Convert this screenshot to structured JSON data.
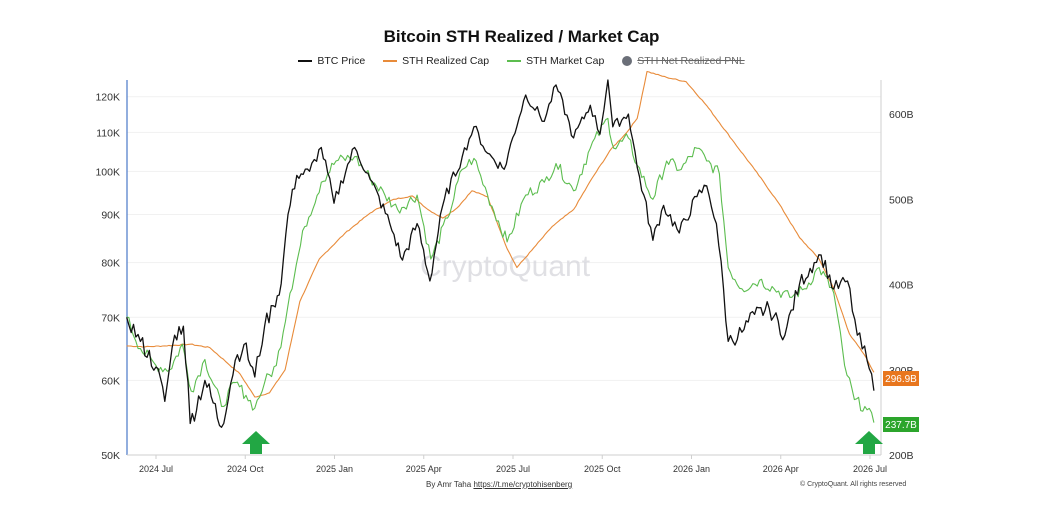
{
  "chart_data": {
    "type": "line",
    "title": "Bitcoin STH Realized / Market Cap",
    "watermark": "CryptoQuant",
    "x_ticks": [
      "2024 Jul",
      "2024 Oct",
      "2025 Jan",
      "2025 Apr",
      "2025 Jul",
      "2025 Oct",
      "2026 Jan",
      "2026 Apr",
      "2026 Jul"
    ],
    "y_left_ticks": [
      "50K",
      "60K",
      "70K",
      "80K",
      "90K",
      "100K",
      "110K",
      "120K"
    ],
    "y_left_scale": "log",
    "y_left_range": [
      50000,
      125000
    ],
    "y_right_ticks": [
      "200B",
      "300B",
      "400B",
      "500B",
      "600B"
    ],
    "y_right_range": [
      200,
      640
    ],
    "legend": [
      {
        "name": "BTC Price",
        "color": "#111111",
        "style": "line"
      },
      {
        "name": "STH Realized Cap",
        "color": "#e88b3a",
        "style": "line"
      },
      {
        "name": "STH Market Cap",
        "color": "#5cbd4f",
        "style": "line"
      },
      {
        "name": "STH Net Realized PNL",
        "color": "#6b6f78",
        "style": "dot",
        "disabled": true
      }
    ],
    "end_labels": [
      {
        "text": "296.9B",
        "color": "#e8761e"
      },
      {
        "text": "237.7B",
        "color": "#2ca52c"
      }
    ],
    "series": [
      {
        "name": "BTC Price",
        "axis": "left",
        "color": "#111111",
        "points": [
          [
            "2024-06-01",
            70000
          ],
          [
            "2024-06-15",
            66000
          ],
          [
            "2024-07-01",
            62000
          ],
          [
            "2024-07-10",
            57000
          ],
          [
            "2024-07-20",
            67000
          ],
          [
            "2024-07-29",
            68500
          ],
          [
            "2024-08-05",
            54000
          ],
          [
            "2024-08-20",
            60000
          ],
          [
            "2024-09-06",
            53500
          ],
          [
            "2024-09-20",
            63000
          ],
          [
            "2024-09-29",
            65500
          ],
          [
            "2024-10-10",
            60500
          ],
          [
            "2024-10-20",
            68500
          ],
          [
            "2024-10-29",
            72000
          ],
          [
            "2024-11-06",
            76000
          ],
          [
            "2024-11-13",
            90000
          ],
          [
            "2024-11-22",
            99000
          ],
          [
            "2024-12-05",
            100000
          ],
          [
            "2024-12-17",
            106000
          ],
          [
            "2024-12-30",
            92500
          ],
          [
            "2025-01-20",
            106000
          ],
          [
            "2025-02-05",
            98000
          ],
          [
            "2025-02-25",
            88000
          ],
          [
            "2025-03-10",
            80500
          ],
          [
            "2025-03-25",
            88000
          ],
          [
            "2025-04-07",
            76500
          ],
          [
            "2025-04-22",
            93500
          ],
          [
            "2025-05-10",
            103500
          ],
          [
            "2025-05-22",
            111500
          ],
          [
            "2025-06-05",
            104500
          ],
          [
            "2025-06-22",
            100500
          ],
          [
            "2025-07-14",
            120500
          ],
          [
            "2025-08-02",
            113000
          ],
          [
            "2025-08-14",
            123500
          ],
          [
            "2025-09-01",
            108500
          ],
          [
            "2025-09-18",
            117500
          ],
          [
            "2025-09-28",
            109500
          ],
          [
            "2025-10-06",
            125000
          ],
          [
            "2025-10-11",
            111500
          ],
          [
            "2025-10-27",
            115000
          ],
          [
            "2025-11-05",
            101000
          ],
          [
            "2025-11-21",
            84500
          ],
          [
            "2025-12-02",
            92000
          ],
          [
            "2025-12-18",
            86000
          ],
          [
            "2026-01-05",
            94000
          ],
          [
            "2026-01-15",
            96500
          ],
          [
            "2026-01-25",
            88000
          ],
          [
            "2026-02-06",
            66000
          ],
          [
            "2026-02-20",
            67500
          ],
          [
            "2026-03-05",
            70500
          ],
          [
            "2026-03-20",
            71500
          ],
          [
            "2026-04-05",
            67000
          ],
          [
            "2026-04-20",
            76000
          ],
          [
            "2026-05-05",
            80000
          ],
          [
            "2026-05-12",
            81500
          ],
          [
            "2026-05-25",
            75000
          ],
          [
            "2026-06-08",
            76500
          ],
          [
            "2026-06-18",
            67000
          ],
          [
            "2026-06-28",
            63000
          ],
          [
            "2026-07-05",
            58500
          ]
        ]
      },
      {
        "name": "STH Realized Cap",
        "axis": "right",
        "color": "#e88b3a",
        "points": [
          [
            "2024-06-01",
            328
          ],
          [
            "2024-06-20",
            327
          ],
          [
            "2024-07-10",
            328
          ],
          [
            "2024-08-05",
            330
          ],
          [
            "2024-08-25",
            326
          ],
          [
            "2024-09-10",
            310
          ],
          [
            "2024-09-25",
            295
          ],
          [
            "2024-10-10",
            268
          ],
          [
            "2024-10-25",
            273
          ],
          [
            "2024-11-10",
            300
          ],
          [
            "2024-11-25",
            380
          ],
          [
            "2024-12-15",
            430
          ],
          [
            "2025-01-10",
            460
          ],
          [
            "2025-02-05",
            484
          ],
          [
            "2025-03-01",
            500
          ],
          [
            "2025-03-20",
            504
          ],
          [
            "2025-04-05",
            488
          ],
          [
            "2025-04-20",
            478
          ],
          [
            "2025-05-05",
            490
          ],
          [
            "2025-05-20",
            510
          ],
          [
            "2025-06-05",
            503
          ],
          [
            "2025-06-25",
            442
          ],
          [
            "2025-07-05",
            420
          ],
          [
            "2025-07-20",
            440
          ],
          [
            "2025-08-10",
            468
          ],
          [
            "2025-09-01",
            488
          ],
          [
            "2025-09-20",
            525
          ],
          [
            "2025-10-10",
            560
          ],
          [
            "2025-10-25",
            578
          ],
          [
            "2025-11-05",
            595
          ],
          [
            "2025-11-15",
            650
          ],
          [
            "2025-12-05",
            643
          ],
          [
            "2025-12-25",
            638
          ],
          [
            "2026-01-15",
            610
          ],
          [
            "2026-02-10",
            570
          ],
          [
            "2026-03-05",
            535
          ],
          [
            "2026-03-30",
            495
          ],
          [
            "2026-04-20",
            455
          ],
          [
            "2026-05-10",
            430
          ],
          [
            "2026-05-25",
            395
          ],
          [
            "2026-06-10",
            342
          ],
          [
            "2026-06-25",
            318
          ],
          [
            "2026-07-05",
            297
          ]
        ]
      },
      {
        "name": "STH Market Cap",
        "axis": "right",
        "color": "#5cbd4f",
        "points": [
          [
            "2024-06-01",
            362
          ],
          [
            "2024-06-15",
            325
          ],
          [
            "2024-07-01",
            305
          ],
          [
            "2024-07-15",
            300
          ],
          [
            "2024-07-28",
            330
          ],
          [
            "2024-08-06",
            275
          ],
          [
            "2024-08-20",
            312
          ],
          [
            "2024-09-06",
            257
          ],
          [
            "2024-09-20",
            285
          ],
          [
            "2024-10-01",
            270
          ],
          [
            "2024-10-10",
            255
          ],
          [
            "2024-10-20",
            285
          ],
          [
            "2024-11-01",
            305
          ],
          [
            "2024-11-15",
            390
          ],
          [
            "2024-11-30",
            468
          ],
          [
            "2024-12-17",
            520
          ],
          [
            "2025-01-01",
            545
          ],
          [
            "2025-01-20",
            550
          ],
          [
            "2025-02-05",
            525
          ],
          [
            "2025-02-20",
            505
          ],
          [
            "2025-03-05",
            488
          ],
          [
            "2025-03-25",
            505
          ],
          [
            "2025-04-08",
            430
          ],
          [
            "2025-04-25",
            478
          ],
          [
            "2025-05-10",
            535
          ],
          [
            "2025-05-22",
            548
          ],
          [
            "2025-06-05",
            505
          ],
          [
            "2025-06-25",
            450
          ],
          [
            "2025-07-14",
            505
          ],
          [
            "2025-08-02",
            520
          ],
          [
            "2025-08-14",
            542
          ],
          [
            "2025-09-01",
            510
          ],
          [
            "2025-09-18",
            560
          ],
          [
            "2025-10-06",
            595
          ],
          [
            "2025-10-12",
            560
          ],
          [
            "2025-10-27",
            572
          ],
          [
            "2025-11-05",
            540
          ],
          [
            "2025-11-21",
            500
          ],
          [
            "2025-12-05",
            545
          ],
          [
            "2025-12-20",
            535
          ],
          [
            "2026-01-05",
            560
          ],
          [
            "2026-01-15",
            545
          ],
          [
            "2026-01-28",
            530
          ],
          [
            "2026-02-06",
            420
          ],
          [
            "2026-02-20",
            395
          ],
          [
            "2026-03-10",
            405
          ],
          [
            "2026-03-25",
            395
          ],
          [
            "2026-04-10",
            385
          ],
          [
            "2026-04-25",
            395
          ],
          [
            "2026-05-10",
            420
          ],
          [
            "2026-05-25",
            390
          ],
          [
            "2026-06-05",
            305
          ],
          [
            "2026-06-15",
            265
          ],
          [
            "2026-06-28",
            253
          ],
          [
            "2026-07-05",
            238
          ]
        ]
      }
    ]
  },
  "footer": {
    "author": "By Amr Taha",
    "link": "https://t.me/cryptohisenberg",
    "copyright": "© CryptoQuant. All rights reserved"
  }
}
